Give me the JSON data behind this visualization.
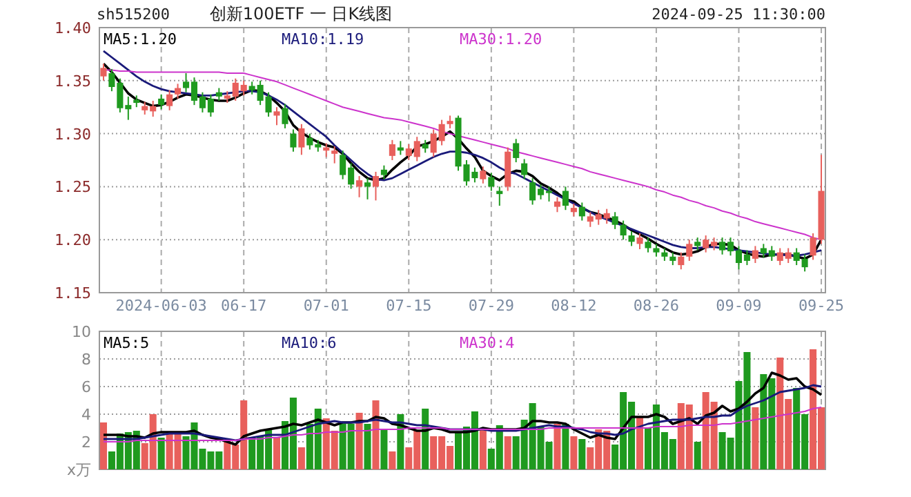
{
  "chart_data": [
    {
      "type": "candlestick",
      "title": "创新100ETF 一 日K线图",
      "annotations": [
        "sh515200",
        "2024-09-25 11:30:00"
      ],
      "categories": [
        null,
        null,
        null,
        null,
        null,
        null,
        null,
        "2024-06-03",
        null,
        null,
        null,
        null,
        null,
        null,
        null,
        null,
        null,
        "06-17",
        null,
        null,
        null,
        null,
        null,
        null,
        null,
        null,
        null,
        "07-01",
        null,
        null,
        null,
        null,
        null,
        null,
        null,
        null,
        null,
        "07-15",
        null,
        null,
        null,
        null,
        null,
        null,
        null,
        null,
        null,
        "07-29",
        null,
        null,
        null,
        null,
        null,
        null,
        null,
        null,
        null,
        "08-12",
        null,
        null,
        null,
        null,
        null,
        null,
        null,
        null,
        null,
        "08-26",
        null,
        null,
        null,
        null,
        null,
        null,
        null,
        null,
        null,
        "09-09",
        null,
        null,
        null,
        null,
        null,
        null,
        null,
        null,
        null,
        "09-25"
      ],
      "ohlc": [
        [
          1.354,
          1.366,
          1.35,
          1.362
        ],
        [
          1.357,
          1.361,
          1.34,
          1.344
        ],
        [
          1.348,
          1.352,
          1.32,
          1.324
        ],
        [
          1.327,
          1.335,
          1.313,
          1.323
        ],
        [
          1.332,
          1.336,
          1.325,
          1.329
        ],
        [
          1.322,
          1.33,
          1.318,
          1.326
        ],
        [
          1.321,
          1.331,
          1.316,
          1.326
        ],
        [
          1.333,
          1.337,
          1.323,
          1.327
        ],
        [
          1.326,
          1.341,
          1.322,
          1.337
        ],
        [
          1.337,
          1.347,
          1.333,
          1.343
        ],
        [
          1.349,
          1.357,
          1.339,
          1.343
        ],
        [
          1.349,
          1.353,
          1.327,
          1.331
        ],
        [
          1.335,
          1.339,
          1.32,
          1.324
        ],
        [
          1.333,
          1.337,
          1.316,
          1.32
        ],
        [
          1.339,
          1.343,
          1.331,
          1.335
        ],
        [
          1.333,
          1.34,
          1.329,
          1.336
        ],
        [
          1.335,
          1.352,
          1.331,
          1.348
        ],
        [
          1.34,
          1.35,
          1.336,
          1.346
        ],
        [
          1.345,
          1.349,
          1.337,
          1.341
        ],
        [
          1.346,
          1.35,
          1.327,
          1.331
        ],
        [
          1.335,
          1.339,
          1.316,
          1.32
        ],
        [
          1.317,
          1.325,
          1.308,
          1.321
        ],
        [
          1.324,
          1.328,
          1.305,
          1.309
        ],
        [
          1.3,
          1.304,
          1.283,
          1.287
        ],
        [
          1.287,
          1.309,
          1.28,
          1.305
        ],
        [
          1.296,
          1.3,
          1.285,
          1.289
        ],
        [
          1.29,
          1.294,
          1.283,
          1.287
        ],
        [
          1.284,
          1.291,
          1.278,
          1.287
        ],
        [
          1.281,
          1.288,
          1.272,
          1.284
        ],
        [
          1.28,
          1.284,
          1.257,
          1.261
        ],
        [
          1.268,
          1.272,
          1.248,
          1.252
        ],
        [
          1.25,
          1.26,
          1.24,
          1.256
        ],
        [
          1.254,
          1.258,
          1.238,
          1.25
        ],
        [
          1.25,
          1.264,
          1.237,
          1.26
        ],
        [
          1.266,
          1.27,
          1.257,
          1.261
        ],
        [
          1.279,
          1.294,
          1.275,
          1.29
        ],
        [
          1.287,
          1.293,
          1.28,
          1.284
        ],
        [
          1.279,
          1.29,
          1.275,
          1.286
        ],
        [
          1.278,
          1.297,
          1.274,
          1.293
        ],
        [
          1.29,
          1.294,
          1.282,
          1.286
        ],
        [
          1.282,
          1.304,
          1.278,
          1.3
        ],
        [
          1.293,
          1.313,
          1.289,
          1.309
        ],
        [
          1.309,
          1.317,
          1.305,
          1.312
        ],
        [
          1.315,
          1.317,
          1.265,
          1.269
        ],
        [
          1.271,
          1.275,
          1.251,
          1.255
        ],
        [
          1.264,
          1.268,
          1.254,
          1.258
        ],
        [
          1.257,
          1.269,
          1.253,
          1.265
        ],
        [
          1.259,
          1.263,
          1.246,
          1.25
        ],
        [
          1.246,
          1.25,
          1.232,
          1.243
        ],
        [
          1.25,
          1.287,
          1.246,
          1.283
        ],
        [
          1.291,
          1.295,
          1.273,
          1.277
        ],
        [
          1.272,
          1.276,
          1.257,
          1.261
        ],
        [
          1.254,
          1.258,
          1.233,
          1.237
        ],
        [
          1.248,
          1.252,
          1.238,
          1.242
        ],
        [
          1.246,
          1.25,
          1.236,
          1.244
        ],
        [
          1.231,
          1.24,
          1.226,
          1.236
        ],
        [
          1.246,
          1.25,
          1.228,
          1.232
        ],
        [
          1.226,
          1.234,
          1.222,
          1.23
        ],
        [
          1.231,
          1.235,
          1.218,
          1.222
        ],
        [
          1.217,
          1.226,
          1.212,
          1.222
        ],
        [
          1.219,
          1.228,
          1.214,
          1.224
        ],
        [
          1.22,
          1.229,
          1.215,
          1.225
        ],
        [
          1.222,
          1.226,
          1.21,
          1.214
        ],
        [
          1.214,
          1.218,
          1.2,
          1.204
        ],
        [
          1.204,
          1.208,
          1.194,
          1.198
        ],
        [
          1.196,
          1.206,
          1.191,
          1.202
        ],
        [
          1.198,
          1.202,
          1.188,
          1.192
        ],
        [
          1.192,
          1.196,
          1.184,
          1.188
        ],
        [
          1.188,
          1.192,
          1.18,
          1.184
        ],
        [
          1.184,
          1.188,
          1.176,
          1.18
        ],
        [
          1.176,
          1.188,
          1.172,
          1.184
        ],
        [
          1.184,
          1.2,
          1.18,
          1.196
        ],
        [
          1.198,
          1.202,
          1.19,
          1.194
        ],
        [
          1.192,
          1.204,
          1.188,
          1.2
        ],
        [
          1.194,
          1.202,
          1.19,
          1.198
        ],
        [
          1.198,
          1.202,
          1.186,
          1.19
        ],
        [
          1.198,
          1.202,
          1.185,
          1.189
        ],
        [
          1.19,
          1.194,
          1.172,
          1.178
        ],
        [
          1.186,
          1.19,
          1.176,
          1.18
        ],
        [
          1.182,
          1.194,
          1.178,
          1.19
        ],
        [
          1.192,
          1.196,
          1.183,
          1.187
        ],
        [
          1.19,
          1.194,
          1.18,
          1.184
        ],
        [
          1.18,
          1.192,
          1.176,
          1.188
        ],
        [
          1.182,
          1.192,
          1.178,
          1.188
        ],
        [
          1.188,
          1.192,
          1.176,
          1.18
        ],
        [
          1.182,
          1.186,
          1.17,
          1.174
        ],
        [
          1.185,
          1.206,
          1.181,
          1.202
        ],
        [
          1.2,
          1.28,
          1.196,
          1.246
        ]
      ],
      "colors": [
        "#e8605c",
        "#1f9a1f",
        "#1f9a1f",
        "#1f9a1f",
        "#1f9a1f",
        "#e8605c",
        "#e8605c",
        "#1f9a1f",
        "#e8605c",
        "#e8605c",
        "#1f9a1f",
        "#1f9a1f",
        "#1f9a1f",
        "#1f9a1f",
        "#1f9a1f",
        "#e8605c",
        "#e8605c",
        "#e8605c",
        "#1f9a1f",
        "#1f9a1f",
        "#1f9a1f",
        "#e8605c",
        "#1f9a1f",
        "#1f9a1f",
        "#e8605c",
        "#1f9a1f",
        "#1f9a1f",
        "#e8605c",
        "#e8605c",
        "#1f9a1f",
        "#1f9a1f",
        "#e8605c",
        "#1f9a1f",
        "#e8605c",
        "#1f9a1f",
        "#e8605c",
        "#1f9a1f",
        "#e8605c",
        "#e8605c",
        "#1f9a1f",
        "#e8605c",
        "#e8605c",
        "#e8605c",
        "#1f9a1f",
        "#1f9a1f",
        "#1f9a1f",
        "#e8605c",
        "#1f9a1f",
        "#1f9a1f",
        "#e8605c",
        "#1f9a1f",
        "#1f9a1f",
        "#1f9a1f",
        "#1f9a1f",
        "#1f9a1f",
        "#e8605c",
        "#1f9a1f",
        "#e8605c",
        "#1f9a1f",
        "#e8605c",
        "#e8605c",
        "#e8605c",
        "#1f9a1f",
        "#1f9a1f",
        "#1f9a1f",
        "#e8605c",
        "#1f9a1f",
        "#1f9a1f",
        "#1f9a1f",
        "#1f9a1f",
        "#e8605c",
        "#e8605c",
        "#1f9a1f",
        "#e8605c",
        "#e8605c",
        "#1f9a1f",
        "#1f9a1f",
        "#1f9a1f",
        "#1f9a1f",
        "#e8605c",
        "#1f9a1f",
        "#1f9a1f",
        "#e8605c",
        "#e8605c",
        "#1f9a1f",
        "#1f9a1f",
        "#e8605c",
        "#e8605c"
      ],
      "series": [
        {
          "name": "MA5:1.20",
          "type": "line",
          "color": "#000000",
          "values": [
            1.366,
            1.358,
            1.348,
            1.338,
            1.332,
            1.329,
            1.326,
            1.327,
            1.33,
            1.334,
            1.337,
            1.336,
            1.334,
            1.332,
            1.331,
            1.331,
            1.334,
            1.338,
            1.341,
            1.34,
            1.336,
            1.329,
            1.321,
            1.308,
            1.301,
            1.296,
            1.292,
            1.289,
            1.287,
            1.281,
            1.272,
            1.264,
            1.258,
            1.256,
            1.258,
            1.266,
            1.273,
            1.279,
            1.288,
            1.29,
            1.293,
            1.297,
            1.302,
            1.295,
            1.286,
            1.278,
            1.265,
            1.26,
            1.256,
            1.262,
            1.265,
            1.264,
            1.26,
            1.253,
            1.249,
            1.244,
            1.238,
            1.236,
            1.23,
            1.226,
            1.224,
            1.221,
            1.218,
            1.214,
            1.209,
            1.205,
            1.201,
            1.196,
            1.192,
            1.188,
            1.186,
            1.187,
            1.189,
            1.193,
            1.196,
            1.196,
            1.195,
            1.19,
            1.187,
            1.185,
            1.184,
            1.186,
            1.186,
            1.186,
            1.184,
            1.182,
            1.186,
            1.2
          ]
        },
        {
          "name": "MA10:1.19",
          "type": "line",
          "color": "#1a1a7a",
          "values": [
            1.378,
            1.372,
            1.366,
            1.36,
            1.354,
            1.349,
            1.345,
            1.342,
            1.34,
            1.339,
            1.338,
            1.337,
            1.336,
            1.336,
            1.337,
            1.338,
            1.339,
            1.34,
            1.34,
            1.339,
            1.336,
            1.332,
            1.327,
            1.321,
            1.315,
            1.309,
            1.303,
            1.297,
            1.289,
            1.282,
            1.275,
            1.268,
            1.262,
            1.257,
            1.256,
            1.258,
            1.262,
            1.266,
            1.27,
            1.274,
            1.278,
            1.281,
            1.283,
            1.283,
            1.282,
            1.28,
            1.277,
            1.273,
            1.268,
            1.264,
            1.262,
            1.258,
            1.254,
            1.25,
            1.246,
            1.242,
            1.238,
            1.234,
            1.23,
            1.226,
            1.222,
            1.219,
            1.216,
            1.213,
            1.21,
            1.207,
            1.204,
            1.201,
            1.198,
            1.195,
            1.193,
            1.192,
            1.192,
            1.193,
            1.193,
            1.192,
            1.191,
            1.19,
            1.189,
            1.188,
            1.187,
            1.186,
            1.186,
            1.185,
            1.185,
            1.186,
            1.188,
            1.19
          ]
        },
        {
          "name": "MA30:1.20",
          "type": "line",
          "color": "#cc33cc",
          "values": [
            1.36,
            1.36,
            1.359,
            1.359,
            1.358,
            1.358,
            1.358,
            1.358,
            1.358,
            1.358,
            1.358,
            1.358,
            1.358,
            1.358,
            1.358,
            1.357,
            1.357,
            1.357,
            1.355,
            1.353,
            1.351,
            1.349,
            1.346,
            1.343,
            1.34,
            1.337,
            1.334,
            1.331,
            1.328,
            1.325,
            1.323,
            1.321,
            1.319,
            1.317,
            1.315,
            1.314,
            1.313,
            1.311,
            1.309,
            1.307,
            1.305,
            1.302,
            1.3,
            1.298,
            1.296,
            1.294,
            1.292,
            1.29,
            1.288,
            1.286,
            1.283,
            1.281,
            1.279,
            1.277,
            1.275,
            1.273,
            1.271,
            1.269,
            1.267,
            1.264,
            1.262,
            1.26,
            1.258,
            1.256,
            1.254,
            1.252,
            1.25,
            1.247,
            1.245,
            1.242,
            1.24,
            1.237,
            1.235,
            1.232,
            1.23,
            1.227,
            1.225,
            1.222,
            1.22,
            1.217,
            1.215,
            1.213,
            1.211,
            1.209,
            1.207,
            1.205,
            1.202,
            1.2
          ]
        }
      ],
      "ylim": [
        1.15,
        1.4
      ],
      "yticks": [
        {
          "value": 1.15,
          "label": "1.15"
        },
        {
          "value": 1.2,
          "label": "1.20"
        },
        {
          "value": 1.25,
          "label": "1.25"
        },
        {
          "value": 1.3,
          "label": "1.30"
        },
        {
          "value": 1.35,
          "label": "1.35"
        },
        {
          "value": 1.4,
          "label": "1.40"
        }
      ],
      "grid": true,
      "legend": "top"
    },
    {
      "type": "bar",
      "tick_labels": "y",
      "categories": [
        null,
        null,
        null,
        null,
        null,
        null,
        null,
        null,
        null,
        null,
        null,
        null,
        null,
        null,
        null,
        null,
        null,
        null,
        null,
        null,
        null,
        null,
        null,
        null,
        null,
        null,
        null,
        null,
        null,
        null,
        null,
        null,
        null,
        null,
        null,
        null,
        null,
        null,
        null,
        null,
        null,
        null,
        null,
        null,
        null,
        null,
        null,
        null,
        null,
        null,
        null,
        null,
        null,
        null,
        null,
        null,
        null,
        null,
        null,
        null,
        null,
        null,
        null,
        null,
        null,
        null,
        null,
        null,
        null,
        null,
        null,
        null,
        null,
        null,
        null,
        null,
        null,
        null,
        null,
        null,
        null,
        null,
        null,
        null,
        null,
        null,
        null,
        null
      ],
      "values": [
        3.4,
        1.3,
        2.6,
        2.7,
        2.8,
        1.9,
        4.0,
        2.3,
        2.6,
        2.6,
        2.4,
        3.4,
        1.5,
        1.3,
        1.3,
        2.2,
        1.8,
        5.0,
        2.3,
        2.4,
        2.9,
        2.3,
        3.5,
        5.2,
        1.6,
        3.3,
        4.4,
        3.7,
        2.8,
        3.3,
        3.3,
        4.1,
        3.3,
        5.0,
        2.9,
        1.3,
        4.0,
        1.6,
        2.8,
        4.4,
        2.4,
        2.4,
        1.7,
        2.7,
        3.1,
        4.2,
        3.0,
        1.5,
        3.2,
        2.4,
        2.4,
        3.6,
        4.8,
        3.1,
        2.0,
        3.3,
        3.3,
        2.4,
        2.2,
        1.6,
        2.9,
        2.8,
        1.8,
        5.6,
        4.9,
        3.8,
        3.0,
        4.7,
        2.7,
        2.2,
        4.8,
        4.7,
        2.0,
        5.6,
        4.9,
        2.7,
        2.3,
        6.4,
        8.5,
        4.5,
        6.9,
        6.6,
        8.1,
        5.1,
        5.9,
        4.0,
        8.7,
        4.5
      ],
      "colors": [
        "#e8605c",
        "#1f9a1f",
        "#1f9a1f",
        "#1f9a1f",
        "#1f9a1f",
        "#e8605c",
        "#e8605c",
        "#1f9a1f",
        "#e8605c",
        "#e8605c",
        "#1f9a1f",
        "#1f9a1f",
        "#1f9a1f",
        "#1f9a1f",
        "#1f9a1f",
        "#e8605c",
        "#e8605c",
        "#e8605c",
        "#1f9a1f",
        "#1f9a1f",
        "#1f9a1f",
        "#e8605c",
        "#1f9a1f",
        "#1f9a1f",
        "#e8605c",
        "#1f9a1f",
        "#1f9a1f",
        "#e8605c",
        "#e8605c",
        "#1f9a1f",
        "#1f9a1f",
        "#e8605c",
        "#1f9a1f",
        "#e8605c",
        "#1f9a1f",
        "#e8605c",
        "#1f9a1f",
        "#e8605c",
        "#e8605c",
        "#1f9a1f",
        "#e8605c",
        "#e8605c",
        "#e8605c",
        "#1f9a1f",
        "#1f9a1f",
        "#1f9a1f",
        "#e8605c",
        "#1f9a1f",
        "#1f9a1f",
        "#e8605c",
        "#1f9a1f",
        "#1f9a1f",
        "#1f9a1f",
        "#1f9a1f",
        "#1f9a1f",
        "#e8605c",
        "#1f9a1f",
        "#e8605c",
        "#1f9a1f",
        "#e8605c",
        "#e8605c",
        "#e8605c",
        "#1f9a1f",
        "#1f9a1f",
        "#1f9a1f",
        "#e8605c",
        "#1f9a1f",
        "#1f9a1f",
        "#1f9a1f",
        "#1f9a1f",
        "#e8605c",
        "#e8605c",
        "#1f9a1f",
        "#e8605c",
        "#e8605c",
        "#1f9a1f",
        "#1f9a1f",
        "#1f9a1f",
        "#1f9a1f",
        "#e8605c",
        "#1f9a1f",
        "#1f9a1f",
        "#e8605c",
        "#e8605c",
        "#1f9a1f",
        "#1f9a1f",
        "#e8605c",
        "#e8605c"
      ],
      "series": [
        {
          "name": "MA5:5",
          "type": "line",
          "color": "#000000",
          "values": [
            2.5,
            2.5,
            2.5,
            2.4,
            2.4,
            2.3,
            2.6,
            2.7,
            2.7,
            2.7,
            2.7,
            2.8,
            2.5,
            2.3,
            2.2,
            2.0,
            1.8,
            2.4,
            2.6,
            2.8,
            2.9,
            3.0,
            3.1,
            3.3,
            3.2,
            3.4,
            3.6,
            3.4,
            3.2,
            3.4,
            3.4,
            3.5,
            3.5,
            3.8,
            3.7,
            3.3,
            3.2,
            3.0,
            2.8,
            2.8,
            3.0,
            2.9,
            2.7,
            2.7,
            2.7,
            2.8,
            3.0,
            2.9,
            2.9,
            2.9,
            2.9,
            3.0,
            3.5,
            3.5,
            3.4,
            3.4,
            3.3,
            2.9,
            2.6,
            2.3,
            2.5,
            2.3,
            2.2,
            3.0,
            3.8,
            3.8,
            3.8,
            4.0,
            3.8,
            3.3,
            3.5,
            3.7,
            3.3,
            3.9,
            4.1,
            4.6,
            4.2,
            4.4,
            4.9,
            5.5,
            5.9,
            7.0,
            6.8,
            6.5,
            6.6,
            6.0,
            5.8,
            5.4
          ]
        },
        {
          "name": "MA10:6",
          "type": "line",
          "color": "#1a1a7a",
          "values": [
            2.2,
            2.2,
            2.2,
            2.2,
            2.2,
            2.3,
            2.4,
            2.5,
            2.6,
            2.6,
            2.6,
            2.6,
            2.5,
            2.4,
            2.3,
            2.2,
            2.1,
            2.2,
            2.3,
            2.4,
            2.5,
            2.5,
            2.5,
            2.7,
            2.9,
            3.1,
            3.3,
            3.4,
            3.5,
            3.4,
            3.4,
            3.4,
            3.5,
            3.6,
            3.5,
            3.4,
            3.4,
            3.3,
            3.2,
            3.2,
            3.1,
            3.0,
            2.9,
            2.9,
            2.9,
            2.9,
            2.9,
            2.8,
            2.8,
            2.8,
            2.8,
            2.9,
            3.0,
            3.1,
            3.2,
            3.1,
            3.1,
            3.0,
            2.9,
            2.7,
            2.6,
            2.6,
            2.5,
            2.6,
            2.9,
            3.1,
            3.3,
            3.4,
            3.5,
            3.6,
            3.6,
            3.6,
            3.7,
            3.8,
            3.8,
            3.9,
            3.9,
            4.3,
            4.6,
            4.8,
            5.0,
            5.3,
            5.6,
            5.7,
            5.8,
            5.9,
            6.1,
            6.0
          ]
        },
        {
          "name": "MA30:4",
          "type": "line",
          "color": "#cc33cc",
          "values": [
            2.0,
            2.0,
            2.0,
            2.0,
            2.1,
            2.1,
            2.1,
            2.1,
            2.1,
            2.1,
            2.1,
            2.1,
            2.1,
            2.1,
            2.1,
            2.1,
            2.1,
            2.2,
            2.2,
            2.2,
            2.3,
            2.3,
            2.4,
            2.5,
            2.5,
            2.6,
            2.6,
            2.7,
            2.7,
            2.7,
            2.8,
            2.8,
            2.8,
            2.9,
            2.9,
            2.9,
            2.9,
            3.0,
            3.0,
            3.0,
            3.0,
            3.0,
            2.9,
            2.9,
            2.9,
            2.9,
            2.9,
            2.9,
            2.9,
            2.9,
            2.9,
            2.9,
            2.9,
            2.9,
            3.0,
            3.0,
            3.0,
            3.0,
            3.0,
            3.0,
            3.0,
            3.0,
            3.0,
            3.0,
            3.0,
            3.0,
            3.0,
            3.1,
            3.1,
            3.1,
            3.1,
            3.2,
            3.2,
            3.2,
            3.2,
            3.3,
            3.3,
            3.4,
            3.5,
            3.6,
            3.7,
            3.8,
            3.9,
            4.0,
            4.1,
            4.2,
            4.4,
            4.5
          ]
        }
      ],
      "ylim": [
        0,
        10
      ],
      "yticks": [
        {
          "value": 0,
          "label": "x万"
        },
        2,
        4,
        6,
        8,
        10
      ],
      "grid": true,
      "legend": "top"
    }
  ]
}
